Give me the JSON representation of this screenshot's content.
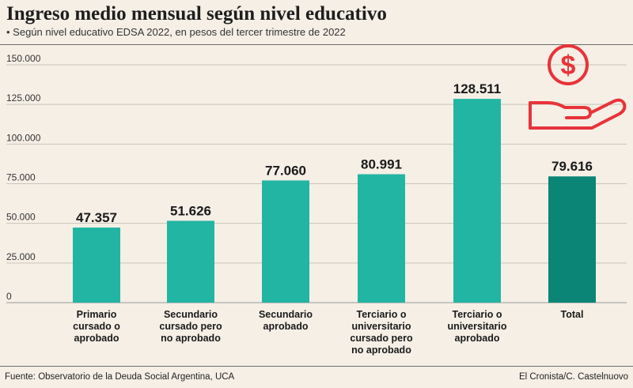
{
  "title": "Ingreso medio mensual según nivel educativo",
  "subtitle": "• Según nivel educativo EDSA 2022, en pesos del tercer trimestre de 2022",
  "source": "Fuente: Observatorio de la Deuda Social Argentina, UCA",
  "credit": "El Cronista/C. Castelnuovo",
  "icon": "hand-holding-dollar-icon",
  "colors": {
    "bar": "#22b5a3",
    "bar_total": "#0b8576",
    "icon": "#e8333a",
    "background": "#f5efe6"
  },
  "chart_data": {
    "type": "bar",
    "categories": [
      [
        "Primario",
        "cursado o",
        "aprobado"
      ],
      [
        "Secundario",
        "cursado pero",
        "no aprobado"
      ],
      [
        "Secundario",
        "aprobado"
      ],
      [
        "Terciario o",
        "universitario",
        "cursado pero",
        "no aprobado"
      ],
      [
        "Terciario o",
        "universitario",
        "aprobado"
      ],
      [
        "Total"
      ]
    ],
    "values": [
      47357,
      51626,
      77060,
      80991,
      128511,
      79616
    ],
    "value_labels": [
      "47.357",
      "51.626",
      "77.060",
      "80.991",
      "128.511",
      "79.616"
    ],
    "highlight_last": true,
    "ylim": [
      0,
      150000
    ],
    "yticks": [
      0,
      25000,
      50000,
      75000,
      100000,
      125000,
      150000
    ],
    "ytick_labels": [
      "0",
      "25.000",
      "50.000",
      "75.000",
      "100.000",
      "125.000",
      "150.000"
    ],
    "grid": true,
    "xlabel": "",
    "ylabel": ""
  }
}
